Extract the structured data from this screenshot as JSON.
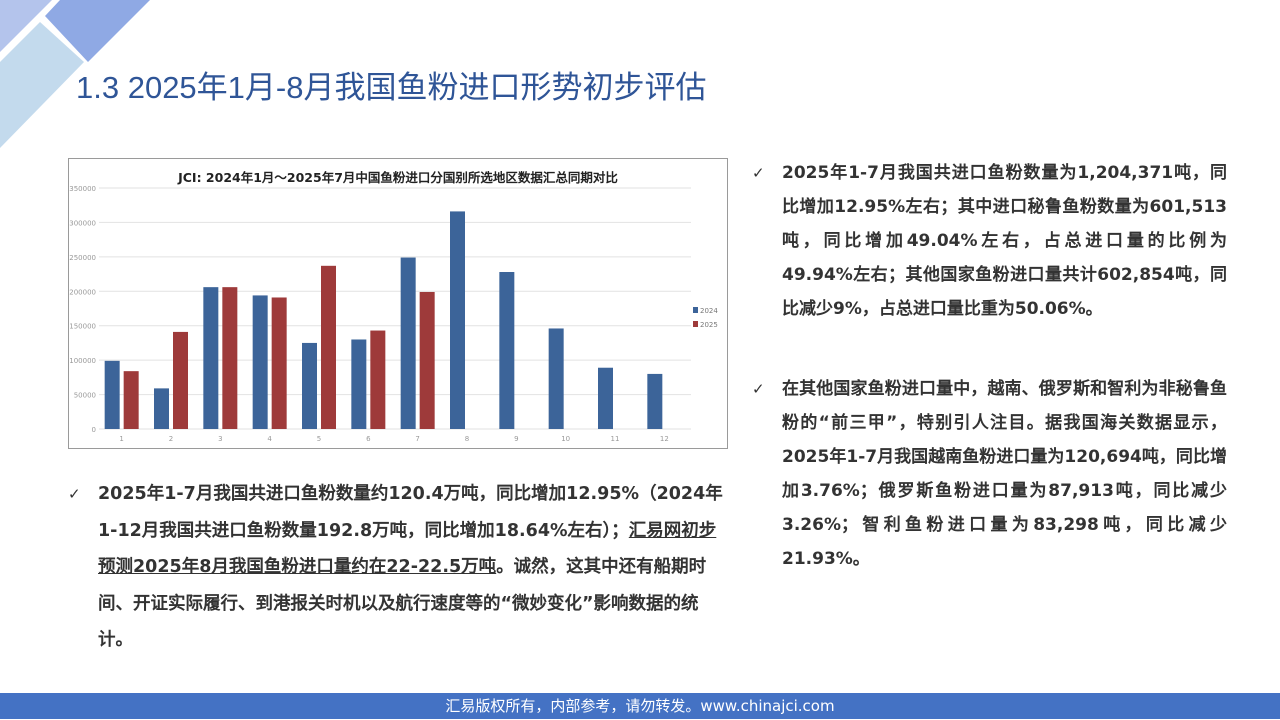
{
  "title": "1.3 2025年1月-8月我国鱼粉进口形势初步评估",
  "colors": {
    "accent": "#2f5597",
    "series_2024": "#3c6499",
    "series_2025": "#9e3a3a",
    "footer": "#4472c4"
  },
  "chart_data": {
    "type": "bar",
    "title": "JCI: 2024年1月～2025年7月中国鱼粉进口分国别所选地区数据汇总同期对比",
    "categories": [
      "1",
      "2",
      "3",
      "4",
      "5",
      "6",
      "7",
      "8",
      "9",
      "10",
      "11",
      "12"
    ],
    "series": [
      {
        "name": "2024",
        "values": [
          99000,
          59000,
          206000,
          194000,
          125000,
          130000,
          249000,
          316000,
          228000,
          146000,
          89000,
          80000
        ]
      },
      {
        "name": "2025",
        "values": [
          84000,
          141000,
          206000,
          191000,
          237000,
          143000,
          199000,
          null,
          null,
          null,
          null,
          null
        ]
      }
    ],
    "ylim": [
      0,
      350000
    ],
    "yticks": [
      "0",
      "50000",
      "100000",
      "150000",
      "200000",
      "250000",
      "300000",
      "350000"
    ],
    "grid": true,
    "legend": "right"
  },
  "left_bullet": {
    "check": "✓",
    "text_a": "2025年1-7月我国共进口鱼粉数量约120.4万吨，同比增加12.95%（2024年1-12月我国共进口鱼粉数量192.8万吨，同比增加18.64%左右）；",
    "text_underlined": "汇易网初步预测2025年8月我国鱼粉进口量约在22-22.5万吨",
    "text_b": "。诚然，这其中还有船期时间、开证实际履行、到港报关时机以及航行速度等的“微妙变化”影响数据的统计。"
  },
  "right_bullets": [
    {
      "check": "✓",
      "text": "2025年1-7月我国共进口鱼粉数量为1,204,371吨，同比增加12.95%左右；其中进口秘鲁鱼粉数量为601,513吨，同比增加49.04%左右，占总进口量的比例为49.94%左右；其他国家鱼粉进口量共计602,854吨，同比减少9%，占总进口量比重为50.06%。"
    },
    {
      "check": "✓",
      "text": "在其他国家鱼粉进口量中，越南、俄罗斯和智利为非秘鲁鱼粉的“前三甲”，特别引人注目。据我国海关数据显示，2025年1-7月我国越南鱼粉进口量为120,694吨，同比增加3.76%；俄罗斯鱼粉进口量为87,913吨，同比减少3.26%；智利鱼粉进口量为83,298吨，同比减少21.93%。"
    }
  ],
  "footer": "汇易版权所有，内部参考，请勿转发。www.chinajci.com"
}
